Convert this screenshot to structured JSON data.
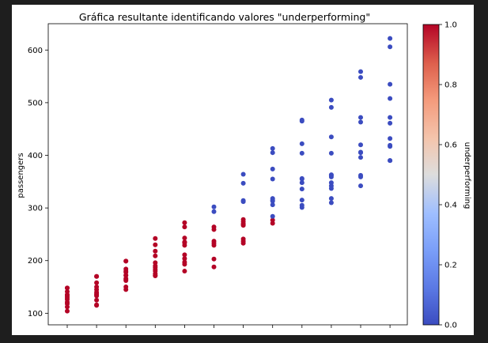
{
  "chart_data": {
    "type": "scatter",
    "title": "Gráfica resultante identificando valores \"underperforming\"",
    "xlabel": "",
    "ylabel": "passengers",
    "ylim": [
      78,
      650
    ],
    "yticks": [
      100,
      200,
      300,
      400,
      500,
      600
    ],
    "colorbar": {
      "label": "underperforming",
      "range": [
        0.0,
        1.0
      ],
      "ticks": [
        "0.0",
        "0.2",
        "0.4",
        "0.6",
        "0.8",
        "1.0"
      ],
      "colormap": "coolwarm",
      "colors": {
        "low": "#3b4cc0",
        "mid": "#dddddd",
        "high": "#b40426"
      }
    },
    "grid": false,
    "x_categories": 12,
    "x_tick_labels_shown": false,
    "groups": [
      {
        "passengers": [
          104,
          112,
          118,
          121,
          126,
          129,
          132,
          135,
          135,
          141,
          148,
          148
        ],
        "underperforming": [
          1,
          1,
          1,
          1,
          1,
          1,
          1,
          1,
          1,
          1,
          1,
          1
        ]
      },
      {
        "passengers": [
          115,
          116,
          125,
          133,
          135,
          137,
          140,
          145,
          150,
          158,
          170,
          170
        ],
        "underperforming": [
          1,
          1,
          1,
          1,
          1,
          1,
          1,
          1,
          1,
          1,
          1,
          1
        ]
      },
      {
        "passengers": [
          145,
          150,
          162,
          164,
          166,
          172,
          172,
          178,
          180,
          184,
          199,
          199
        ],
        "underperforming": [
          1,
          1,
          1,
          1,
          1,
          1,
          1,
          1,
          1,
          1,
          1,
          1
        ]
      },
      {
        "passengers": [
          171,
          172,
          175,
          180,
          183,
          187,
          190,
          196,
          209,
          218,
          230,
          242
        ],
        "underperforming": [
          1,
          1,
          1,
          1,
          1,
          1,
          1,
          1,
          1,
          1,
          1,
          1
        ]
      },
      {
        "passengers": [
          180,
          193,
          197,
          204,
          211,
          229,
          234,
          235,
          235,
          243,
          264,
          272
        ],
        "underperforming": [
          1,
          1,
          1,
          1,
          1,
          1,
          1,
          1,
          1,
          1,
          1,
          1
        ]
      },
      {
        "passengers": [
          188,
          203,
          229,
          233,
          237,
          259,
          264,
          293,
          302
        ],
        "underperforming": [
          1,
          1,
          1,
          1,
          1,
          1,
          1,
          0,
          0
        ]
      },
      {
        "passengers": [
          233,
          237,
          241,
          267,
          269,
          270,
          274,
          278,
          312,
          314,
          347,
          364
        ],
        "underperforming": [
          1,
          1,
          1,
          1,
          1,
          1,
          1,
          1,
          0,
          0,
          0,
          0
        ]
      },
      {
        "passengers": [
          271,
          277,
          284,
          306,
          313,
          315,
          318,
          355,
          374,
          405,
          413
        ],
        "underperforming": [
          1,
          1,
          0,
          0,
          0,
          0,
          0,
          0,
          0,
          0,
          0
        ]
      },
      {
        "passengers": [
          301,
          305,
          315,
          336,
          348,
          355,
          356,
          404,
          422,
          465,
          467
        ],
        "underperforming": [
          0,
          0,
          0,
          0,
          0,
          0,
          0,
          0,
          0,
          0,
          0
        ]
      },
      {
        "passengers": [
          310,
          318,
          337,
          342,
          348,
          359,
          362,
          363,
          404,
          435,
          491,
          505
        ],
        "underperforming": [
          0,
          0,
          0,
          0,
          0,
          0,
          0,
          0,
          0,
          0,
          0,
          0
        ]
      },
      {
        "passengers": [
          342,
          359,
          362,
          396,
          405,
          406,
          420,
          463,
          472,
          548,
          559
        ],
        "underperforming": [
          0,
          0,
          0,
          0,
          0,
          0,
          0,
          0,
          0,
          0,
          0
        ]
      },
      {
        "passengers": [
          390,
          390,
          417,
          419,
          432,
          461,
          472,
          508,
          535,
          606,
          622
        ],
        "underperforming": [
          0,
          0,
          0,
          0,
          0,
          0,
          0,
          0,
          0,
          0,
          0
        ]
      }
    ]
  }
}
